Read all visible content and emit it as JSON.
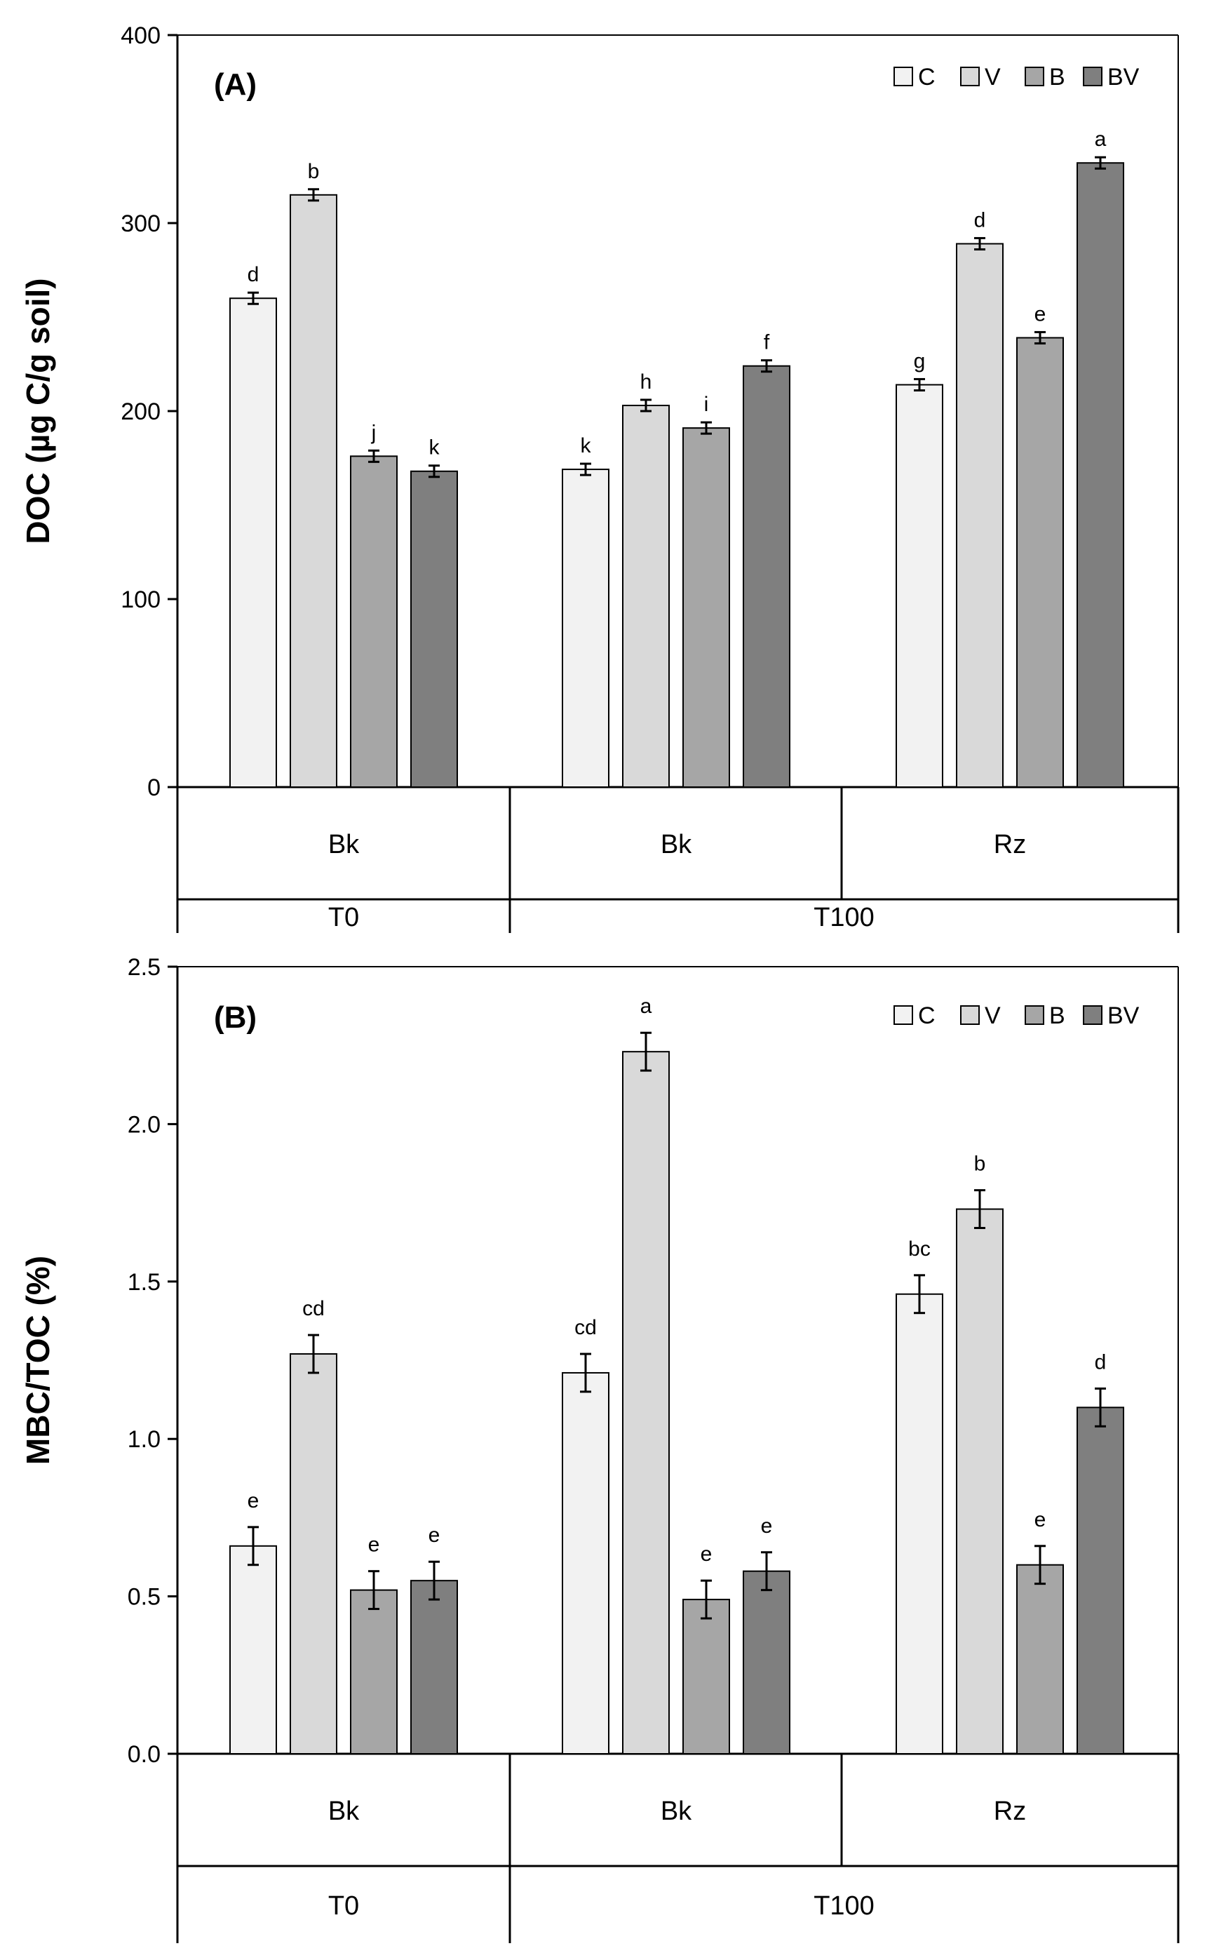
{
  "chart_data": [
    {
      "type": "bar",
      "panel_label": "(A)",
      "ylabel": "DOC (µg C/g soil)",
      "ylim": [
        0,
        400
      ],
      "yticks": [
        "0",
        "100",
        "200",
        "300",
        "400"
      ],
      "groups": [
        {
          "sublabel": "Bk",
          "label": "T0"
        },
        {
          "sublabel": "Bk",
          "label": "T100"
        },
        {
          "sublabel": "Rz",
          "label": "T100"
        }
      ],
      "outer_labels": [
        "T0",
        "T100"
      ],
      "series": [
        {
          "name": "C",
          "color": "#f2f2f2",
          "values": [
            260,
            169,
            214
          ],
          "errors": [
            3,
            3,
            3
          ],
          "letters": [
            "d",
            "k",
            "g"
          ]
        },
        {
          "name": "V",
          "color": "#d9d9d9",
          "values": [
            315,
            203,
            289
          ],
          "errors": [
            3,
            3,
            3
          ],
          "letters": [
            "b",
            "h",
            "d"
          ]
        },
        {
          "name": "B",
          "color": "#a6a6a6",
          "values": [
            176,
            191,
            239
          ],
          "errors": [
            3,
            3,
            3
          ],
          "letters": [
            "j",
            "i",
            "e"
          ]
        },
        {
          "name": "BV",
          "color": "#7f7f7f",
          "values": [
            168,
            224,
            332
          ],
          "errors": [
            3,
            3,
            3
          ],
          "letters": [
            "k",
            "f",
            "a"
          ]
        }
      ],
      "legend_position": "top-right"
    },
    {
      "type": "bar",
      "panel_label": "(B)",
      "ylabel": "MBC/TOC (%)",
      "ylim": [
        0,
        2.5
      ],
      "yticks": [
        "0.0",
        "0.5",
        "1.0",
        "1.5",
        "2.0",
        "2.5"
      ],
      "groups": [
        {
          "sublabel": "Bk",
          "label": "T0"
        },
        {
          "sublabel": "Bk",
          "label": "T100"
        },
        {
          "sublabel": "Rz",
          "label": "T100"
        }
      ],
      "outer_labels": [
        "T0",
        "T100"
      ],
      "series": [
        {
          "name": "C",
          "color": "#f2f2f2",
          "values": [
            0.66,
            1.21,
            1.46
          ],
          "errors": [
            0.06,
            0.06,
            0.06
          ],
          "letters": [
            "e",
            "cd",
            "bc"
          ]
        },
        {
          "name": "V",
          "color": "#d9d9d9",
          "values": [
            1.27,
            2.23,
            1.73
          ],
          "errors": [
            0.06,
            0.06,
            0.06
          ],
          "letters": [
            "cd",
            "a",
            "b"
          ]
        },
        {
          "name": "B",
          "color": "#a6a6a6",
          "values": [
            0.52,
            0.49,
            0.6
          ],
          "errors": [
            0.06,
            0.06,
            0.06
          ],
          "letters": [
            "e",
            "e",
            "e"
          ]
        },
        {
          "name": "BV",
          "color": "#7f7f7f",
          "values": [
            0.55,
            0.58,
            1.1
          ],
          "errors": [
            0.06,
            0.06,
            0.06
          ],
          "letters": [
            "e",
            "e",
            "d"
          ]
        }
      ],
      "legend_position": "top-right"
    }
  ]
}
